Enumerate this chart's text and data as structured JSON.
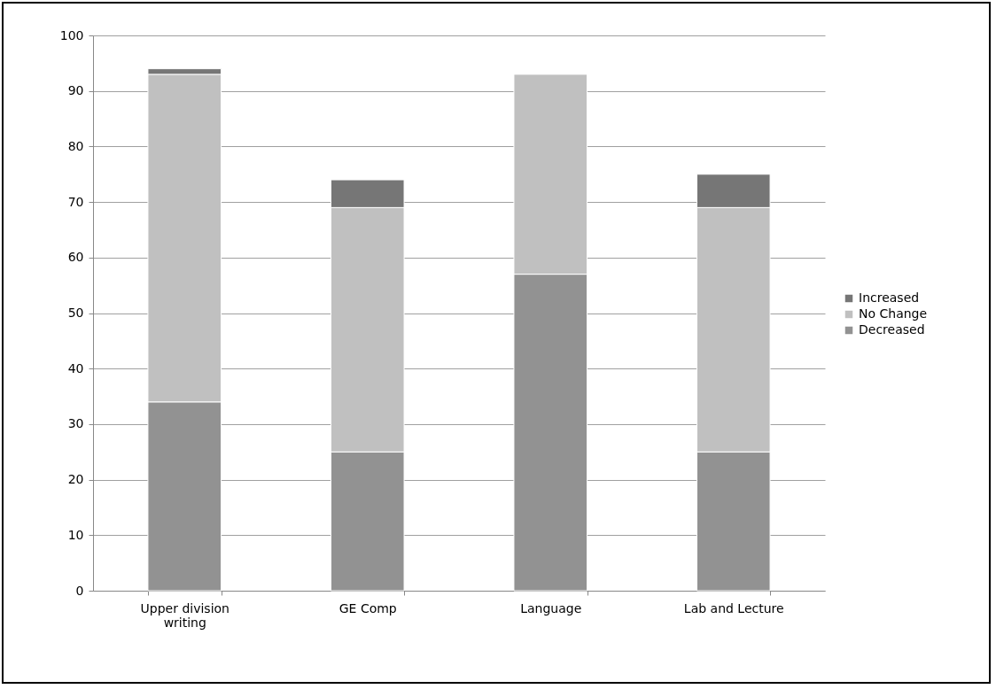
{
  "chart_data": {
    "type": "bar",
    "stacked": true,
    "categories": [
      "Upper division writing",
      "GE Comp",
      "Language",
      "Lab and Lecture"
    ],
    "series": [
      {
        "name": "Decreased",
        "color": "#929292",
        "values": [
          34,
          25,
          57,
          25
        ]
      },
      {
        "name": "No Change",
        "color": "#c0c0c0",
        "values": [
          59,
          44,
          36,
          44
        ]
      },
      {
        "name": "Increased",
        "color": "#767676",
        "values": [
          1,
          5,
          null,
          6
        ]
      }
    ],
    "ylim": [
      0,
      100
    ],
    "yticks": [
      0,
      10,
      20,
      30,
      40,
      50,
      60,
      70,
      80,
      90,
      100
    ],
    "grid": "y",
    "legend": "right"
  }
}
